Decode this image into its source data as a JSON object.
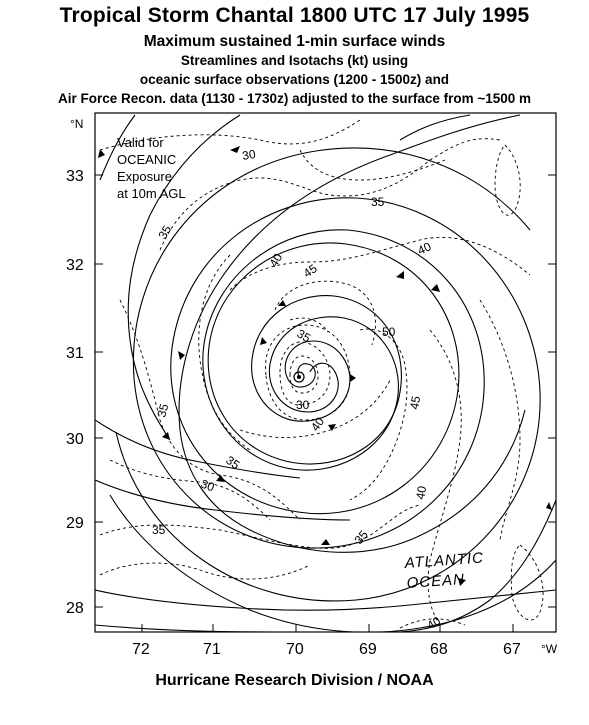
{
  "header": {
    "title": "Tropical Storm Chantal  1800 UTC 17 July 1995",
    "subtitle": "Maximum sustained 1-min surface winds",
    "line3": "Streamlines and Isotachs (kt) using",
    "line4": "oceanic surface observations (1200 - 1500z) and",
    "line5": "Air Force Recon. data (1130 - 1730z) adjusted to the surface from ~1500 m"
  },
  "footer": "Hurricane Research Division / NOAA",
  "map": {
    "lat_unit": "°N",
    "lon_unit": "°W",
    "lat_ticks": [
      {
        "label": "33",
        "lat": 33
      },
      {
        "label": "32",
        "lat": 32
      },
      {
        "label": "31",
        "lat": 31
      },
      {
        "label": "30",
        "lat": 30
      },
      {
        "label": "29",
        "lat": 29
      },
      {
        "label": "28",
        "lat": 28
      }
    ],
    "lon_ticks": [
      {
        "label": "72",
        "lon": 72
      },
      {
        "label": "71",
        "lon": 71
      },
      {
        "label": "70",
        "lon": 70
      },
      {
        "label": "69",
        "lon": 69
      },
      {
        "label": "68",
        "lon": 68
      },
      {
        "label": "67",
        "lon": 67
      }
    ],
    "note": [
      "Valid for",
      "OCEANIC",
      "Exposure",
      "at 10m AGL"
    ],
    "ocean_label": [
      "ATLANTIC",
      "OCEAN"
    ],
    "isotach_labels": [
      "30",
      "35",
      "35",
      "40",
      "40",
      "45",
      "35",
      "50",
      "30",
      "35",
      "40",
      "45",
      "35",
      "30",
      "40",
      "35",
      "35",
      "40"
    ],
    "storm_center": {
      "lat": 30.7,
      "lon": 70.0
    }
  }
}
